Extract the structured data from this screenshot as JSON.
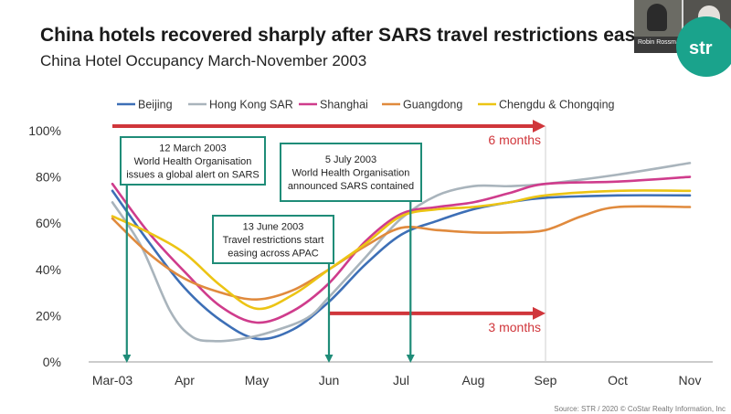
{
  "title": "China hotels recovered sharply after SARS travel restrictions eased",
  "subtitle": "China Hotel Occupancy March-November 2003",
  "source": "Source: STR / 2020 © CoStar Realty Information, Inc",
  "video_call": {
    "participant_name": "Robin Rossmann"
  },
  "brand": {
    "logo_text": "str",
    "color": "#1aa38c"
  },
  "colors": {
    "annotation_box": "#1f8c78",
    "arrow": "#d0363b",
    "grid": "#d9d9d9"
  },
  "chart_data": {
    "type": "line",
    "title": "China Hotel Occupancy March-November 2003",
    "x_ticks": [
      "Mar-03",
      "Apr",
      "May",
      "Jun",
      "Jul",
      "Aug",
      "Sep",
      "Oct",
      "Nov"
    ],
    "y_ticks": [
      "0%",
      "20%",
      "40%",
      "60%",
      "80%",
      "100%"
    ],
    "ylim": [
      0,
      100
    ],
    "x_unit": "months since Mar-03 (0 = Mar-03, 8 = Nov)",
    "legend_position": "top",
    "grid": false,
    "series": [
      {
        "name": "Beijing",
        "color": "#3d6fb6",
        "points": [
          [
            0,
            74
          ],
          [
            0.5,
            52
          ],
          [
            1,
            32
          ],
          [
            1.5,
            18
          ],
          [
            2,
            10
          ],
          [
            2.5,
            14
          ],
          [
            3,
            26
          ],
          [
            3.5,
            42
          ],
          [
            4,
            55
          ],
          [
            4.5,
            61
          ],
          [
            5,
            66
          ],
          [
            5.5,
            69
          ],
          [
            6,
            71
          ],
          [
            7,
            72
          ],
          [
            8,
            72
          ]
        ]
      },
      {
        "name": "Hong Kong SAR",
        "color": "#a9b4bc",
        "points": [
          [
            0,
            69
          ],
          [
            0.4,
            50
          ],
          [
            0.8,
            22
          ],
          [
            1.1,
            11
          ],
          [
            1.4,
            9
          ],
          [
            1.8,
            10
          ],
          [
            2.2,
            13
          ],
          [
            2.7,
            19
          ],
          [
            3,
            28
          ],
          [
            3.5,
            45
          ],
          [
            4,
            62
          ],
          [
            4.5,
            72
          ],
          [
            5,
            76
          ],
          [
            5.5,
            76
          ],
          [
            6,
            77
          ],
          [
            7,
            81
          ],
          [
            8,
            86
          ]
        ]
      },
      {
        "name": "Shanghai",
        "color": "#cf3c8c",
        "points": [
          [
            0,
            77
          ],
          [
            0.5,
            56
          ],
          [
            1,
            39
          ],
          [
            1.5,
            24
          ],
          [
            2,
            17
          ],
          [
            2.5,
            22
          ],
          [
            3,
            34
          ],
          [
            3.5,
            52
          ],
          [
            4,
            64
          ],
          [
            4.5,
            67
          ],
          [
            5,
            69
          ],
          [
            5.5,
            73
          ],
          [
            6,
            77
          ],
          [
            7,
            78
          ],
          [
            8,
            80
          ]
        ]
      },
      {
        "name": "Guangdong",
        "color": "#e08a3d",
        "points": [
          [
            0,
            62
          ],
          [
            0.5,
            47
          ],
          [
            1,
            36
          ],
          [
            1.5,
            30
          ],
          [
            2,
            27
          ],
          [
            2.5,
            31
          ],
          [
            3,
            40
          ],
          [
            3.5,
            50
          ],
          [
            4,
            58
          ],
          [
            4.5,
            57
          ],
          [
            5,
            56
          ],
          [
            5.5,
            56
          ],
          [
            6,
            57
          ],
          [
            6.5,
            63
          ],
          [
            7,
            67
          ],
          [
            8,
            67
          ]
        ]
      },
      {
        "name": "Chengdu & Chongqing",
        "color": "#ecc414",
        "points": [
          [
            0,
            63
          ],
          [
            0.5,
            56
          ],
          [
            1,
            47
          ],
          [
            1.5,
            33
          ],
          [
            2,
            23
          ],
          [
            2.5,
            29
          ],
          [
            3,
            40
          ],
          [
            3.5,
            51
          ],
          [
            4,
            63
          ],
          [
            4.5,
            66
          ],
          [
            5,
            67
          ],
          [
            5.5,
            69
          ],
          [
            6,
            72
          ],
          [
            7,
            74
          ],
          [
            8,
            74
          ]
        ]
      }
    ],
    "annotations": [
      {
        "id": "alert",
        "lines": [
          "12 March 2003",
          "World Health Organisation",
          "issues a global alert on SARS"
        ],
        "x": 0.2
      },
      {
        "id": "contained",
        "lines": [
          "5 July 2003",
          "World Health Organisation",
          "announced SARS contained"
        ],
        "x": 4.13
      },
      {
        "id": "travel",
        "lines": [
          "13 June 2003",
          "Travel restrictions start",
          "easing across APAC"
        ],
        "x": 3.0
      }
    ],
    "arrows": [
      {
        "label": "6 months",
        "from_x": 0,
        "to_x": 6,
        "y": 102
      },
      {
        "label": "3 months",
        "from_x": 3,
        "to_x": 6,
        "y": 21
      }
    ],
    "reference_line_x": 6
  }
}
